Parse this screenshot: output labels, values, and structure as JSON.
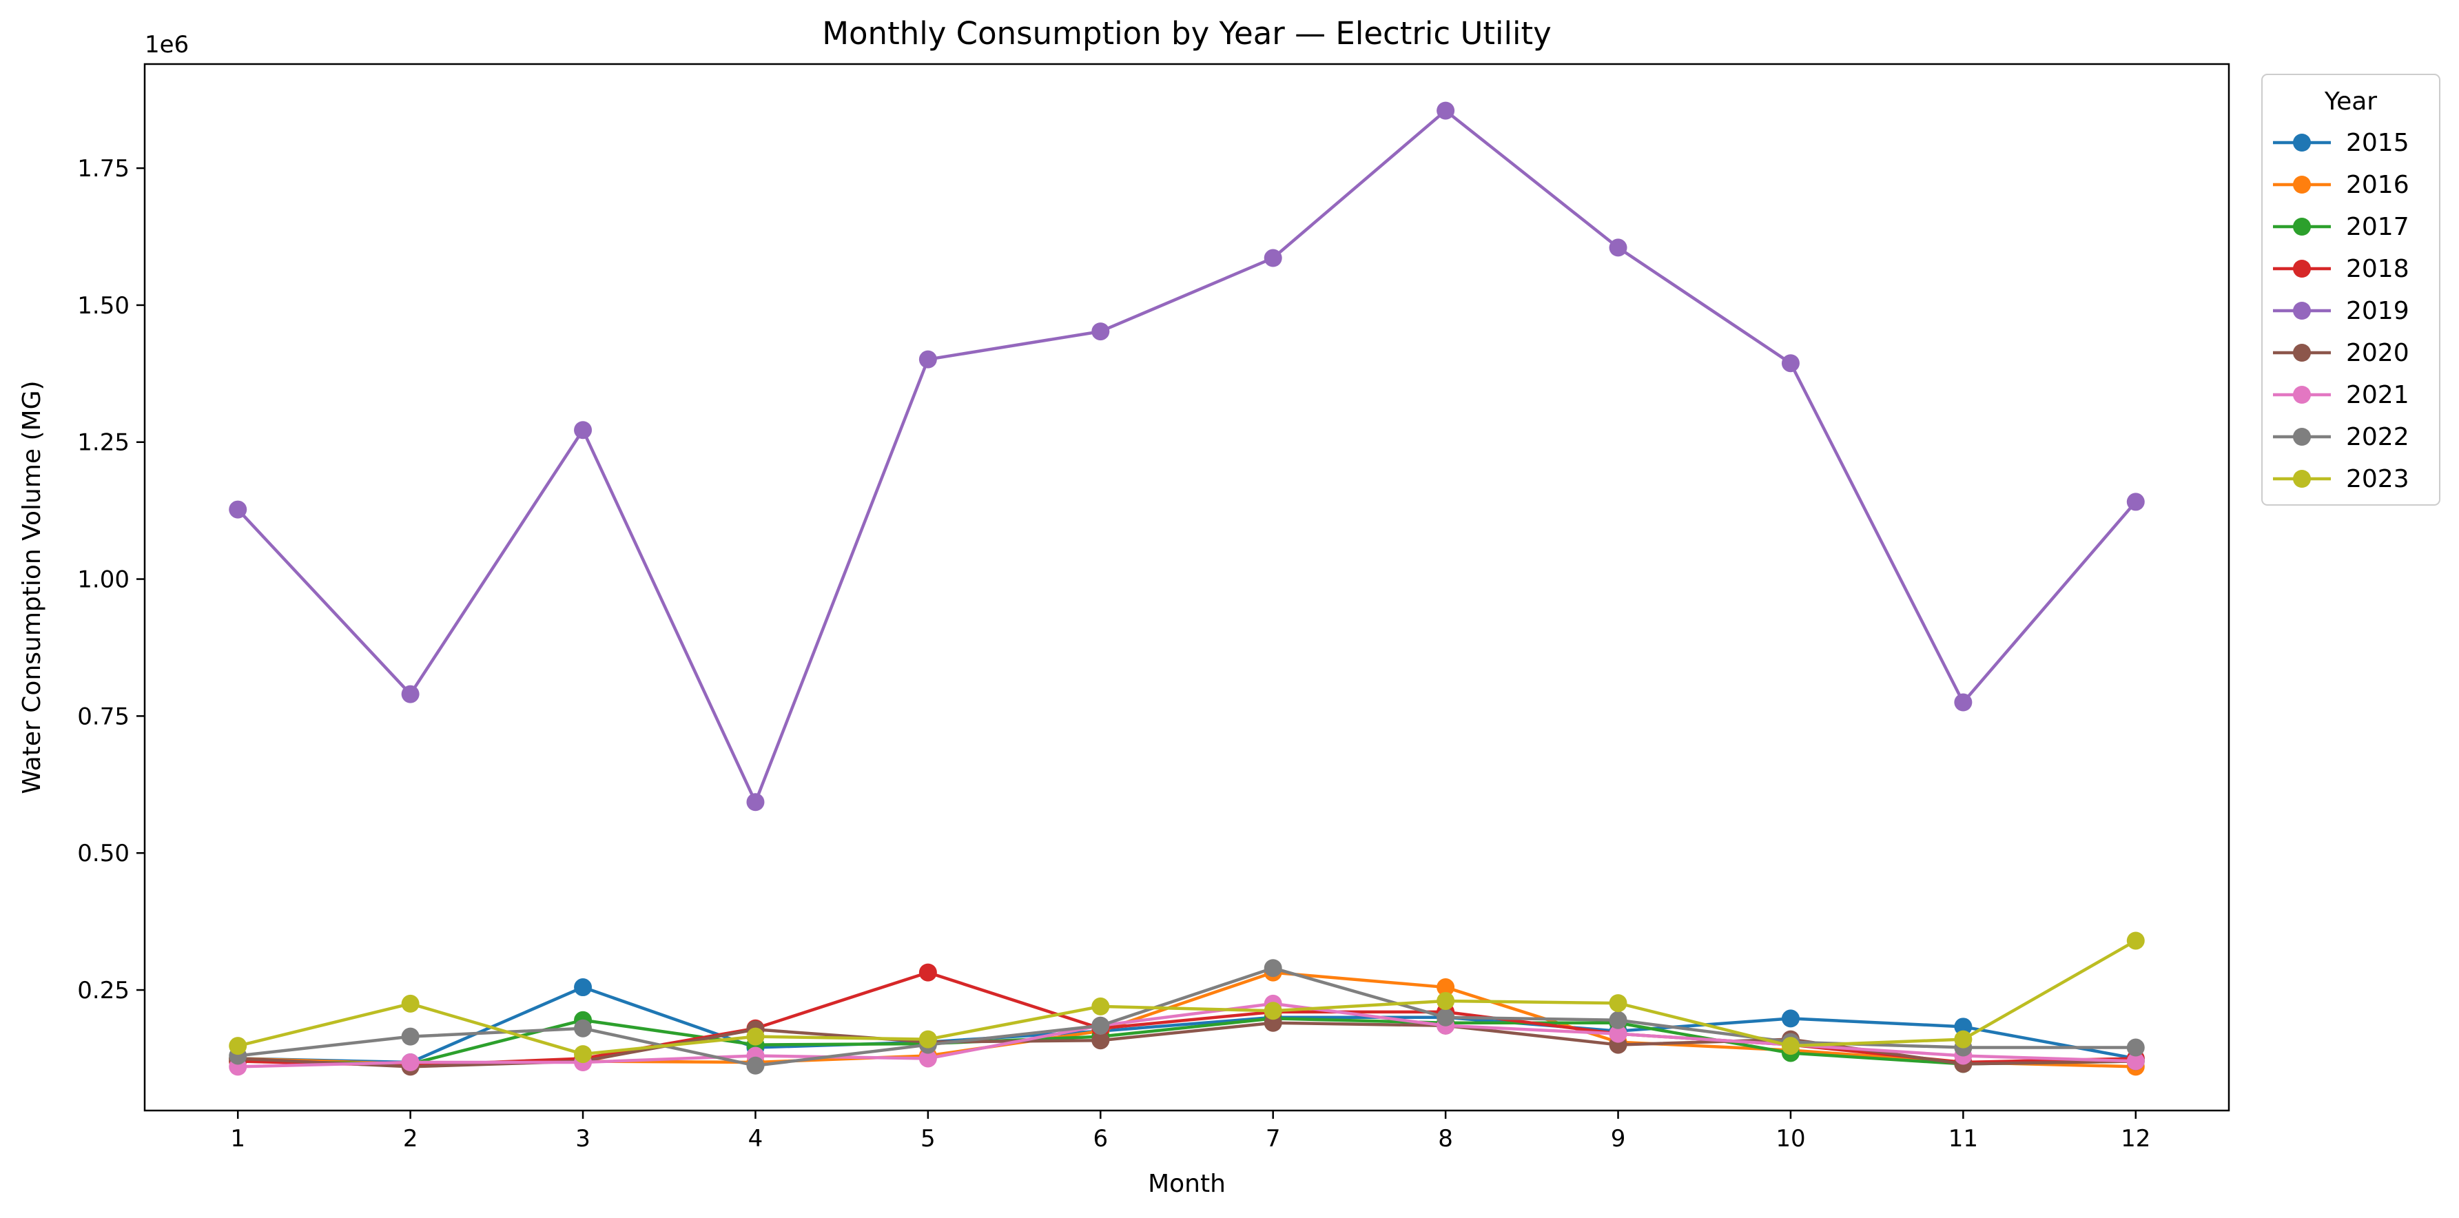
{
  "chart_data": {
    "type": "line",
    "title": "Monthly Consumption by Year — Electric Utility",
    "xlabel": "Month",
    "ylabel": "Water Consumption Volume (MG)",
    "y_offset_text": "1e6",
    "x": [
      1,
      2,
      3,
      4,
      5,
      6,
      7,
      8,
      9,
      10,
      11,
      12
    ],
    "xlim": [
      0.46,
      12.54
    ],
    "ylim": [
      30000,
      1940000
    ],
    "yticks": [
      250000,
      500000,
      750000,
      1000000,
      1250000,
      1500000,
      1750000
    ],
    "ytick_labels": [
      "0.25",
      "0.50",
      "0.75",
      "1.00",
      "1.25",
      "1.50",
      "1.75"
    ],
    "grid": false,
    "legend_title": "Year",
    "legend_position": "outside-top-right",
    "series": [
      {
        "name": "2015",
        "color": "#1f77b4",
        "values": [
          125000,
          118000,
          255000,
          145000,
          155000,
          175000,
          200000,
          200000,
          175000,
          198000,
          183000,
          125000
        ]
      },
      {
        "name": "2016",
        "color": "#ff7f0e",
        "values": [
          125000,
          115000,
          120000,
          118000,
          130000,
          175000,
          282000,
          255000,
          155000,
          140000,
          118000,
          110000
        ]
      },
      {
        "name": "2017",
        "color": "#2ca02c",
        "values": [
          120000,
          115000,
          195000,
          150000,
          152000,
          165000,
          198000,
          190000,
          190000,
          135000,
          115000,
          120000
        ]
      },
      {
        "name": "2018",
        "color": "#d62728",
        "values": [
          120000,
          112000,
          125000,
          180000,
          282000,
          180000,
          210000,
          210000,
          170000,
          150000,
          118000,
          125000
        ]
      },
      {
        "name": "2019",
        "color": "#9467bd",
        "values": [
          1127000,
          790000,
          1272000,
          593000,
          1401000,
          1452000,
          1586000,
          1855000,
          1605000,
          1394000,
          775000,
          1141000
        ]
      },
      {
        "name": "2020",
        "color": "#8c564b",
        "values": [
          125000,
          110000,
          120000,
          178000,
          155000,
          158000,
          190000,
          185000,
          150000,
          160000,
          115000,
          120000
        ]
      },
      {
        "name": "2021",
        "color": "#e377c2",
        "values": [
          110000,
          118000,
          118000,
          130000,
          125000,
          185000,
          225000,
          185000,
          170000,
          150000,
          130000,
          120000
        ]
      },
      {
        "name": "2022",
        "color": "#7f7f7f",
        "values": [
          130000,
          165000,
          180000,
          112000,
          150000,
          185000,
          290000,
          200000,
          195000,
          155000,
          145000,
          145000
        ]
      },
      {
        "name": "2023",
        "color": "#bcbd22",
        "values": [
          148000,
          225000,
          133000,
          165000,
          160000,
          220000,
          212000,
          230000,
          226000,
          148000,
          160000,
          340000
        ]
      }
    ]
  }
}
